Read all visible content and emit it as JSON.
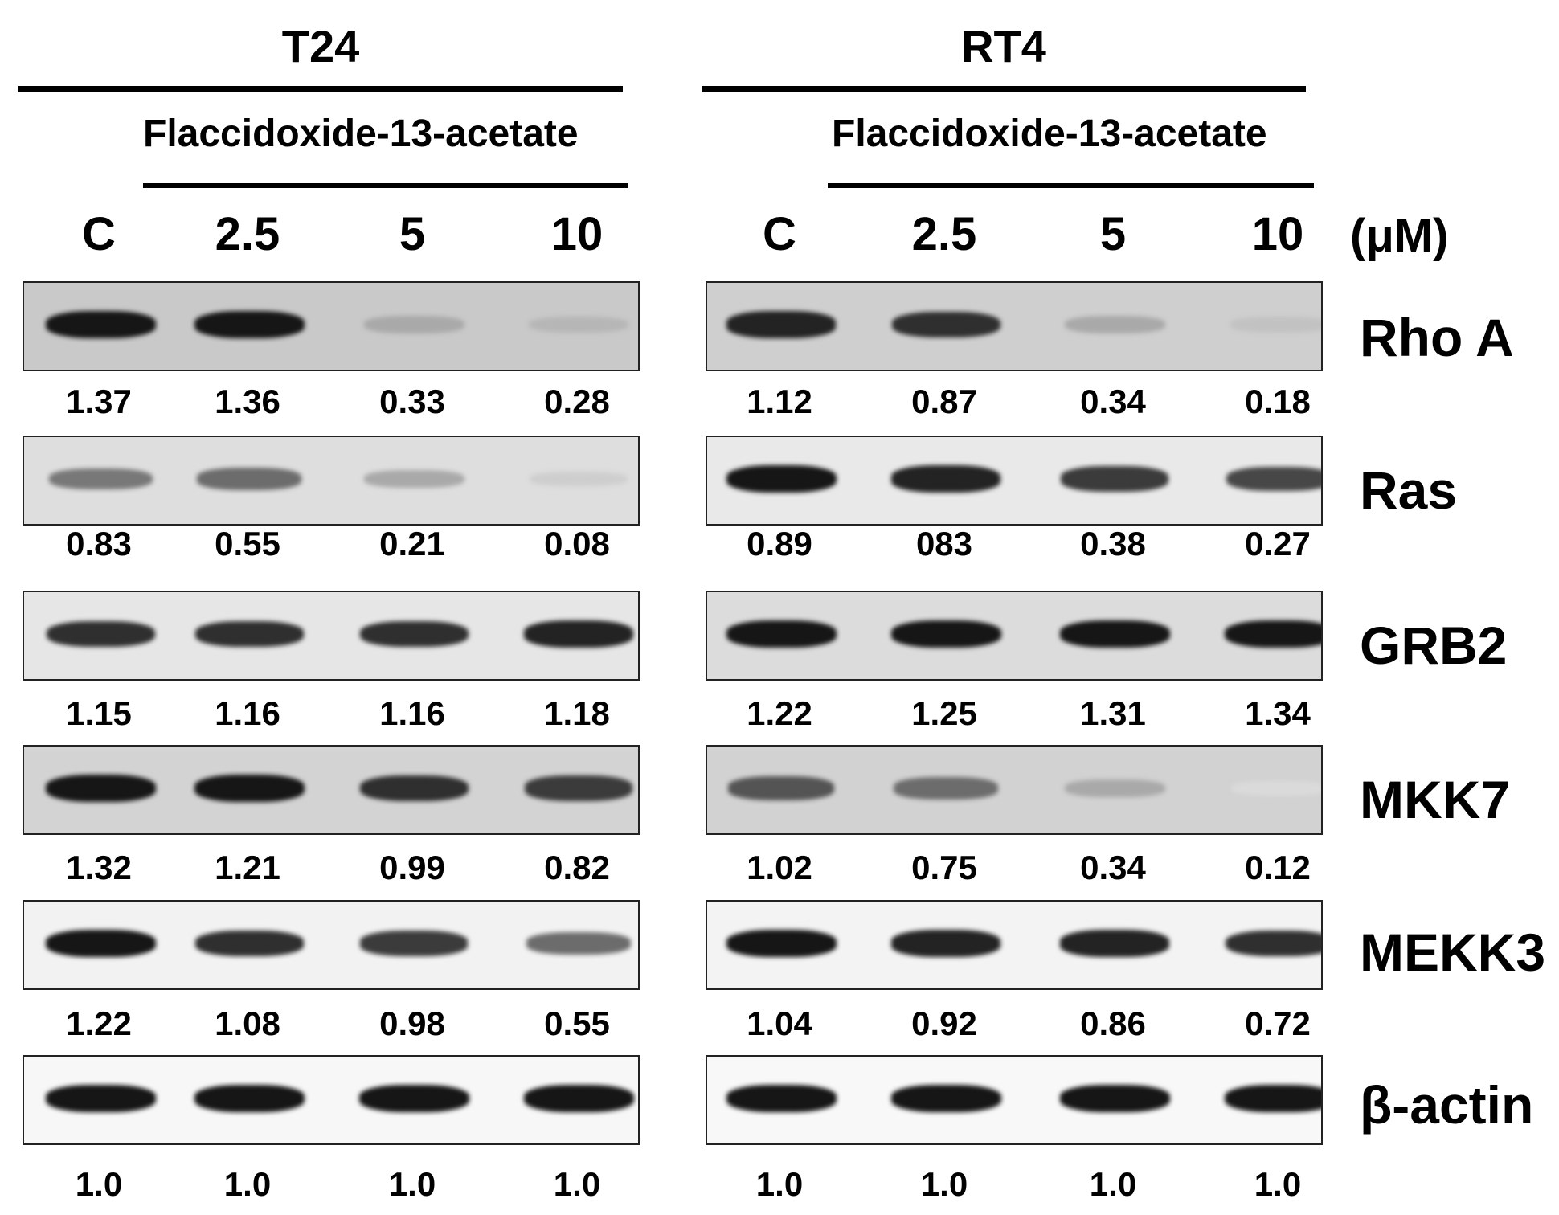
{
  "unit_label": "(μM)",
  "panels": [
    {
      "title": "T24",
      "treatment_label": "Flaccidoxide-13-acetate",
      "lanes": [
        "C",
        "2.5",
        "5",
        "10"
      ],
      "background_colors": [
        "#c9c9c9",
        "#dedede",
        "#e6e6e6",
        "#d3d3d3",
        "#f2f2f2",
        "#f7f7f7"
      ],
      "values": [
        [
          "1.37",
          "1.36",
          "0.33",
          "0.28"
        ],
        [
          "0.83",
          "0.55",
          "0.21",
          "0.08"
        ],
        [
          "1.15",
          "1.16",
          "1.16",
          "1.18"
        ],
        [
          "1.32",
          "1.21",
          "0.99",
          "0.82"
        ],
        [
          "1.22",
          "1.08",
          "0.98",
          "0.55"
        ],
        [
          "1.0",
          "1.0",
          "1.0",
          "1.0"
        ]
      ],
      "band_intensity": [
        [
          0.95,
          0.95,
          0.35,
          0.3
        ],
        [
          0.55,
          0.6,
          0.35,
          0.2
        ],
        [
          0.85,
          0.85,
          0.85,
          0.9
        ],
        [
          0.95,
          0.95,
          0.85,
          0.8
        ],
        [
          0.95,
          0.85,
          0.8,
          0.6
        ],
        [
          0.95,
          0.95,
          0.95,
          0.95
        ]
      ]
    },
    {
      "title": "RT4",
      "treatment_label": "Flaccidoxide-13-acetate",
      "lanes": [
        "C",
        "2.5",
        "5",
        "10"
      ],
      "background_colors": [
        "#cfcfcf",
        "#e9e9e9",
        "#dcdcdc",
        "#d2d2d2",
        "#f3f3f3",
        "#f8f8f8"
      ],
      "values": [
        [
          "1.12",
          "0.87",
          "0.34",
          "0.18"
        ],
        [
          "0.89",
          "083",
          "0.38",
          "0.27"
        ],
        [
          "1.22",
          "1.25",
          "1.31",
          "1.34"
        ],
        [
          "1.02",
          "0.75",
          "0.34",
          "0.12"
        ],
        [
          "1.04",
          "0.92",
          "0.86",
          "0.72"
        ],
        [
          "1.0",
          "1.0",
          "1.0",
          "1.0"
        ]
      ],
      "band_intensity": [
        [
          0.9,
          0.85,
          0.35,
          0.25
        ],
        [
          0.95,
          0.9,
          0.8,
          0.75
        ],
        [
          0.95,
          0.95,
          0.95,
          0.95
        ],
        [
          0.7,
          0.6,
          0.35,
          0.15
        ],
        [
          0.95,
          0.9,
          0.9,
          0.85
        ],
        [
          0.95,
          0.95,
          0.95,
          0.95
        ]
      ]
    }
  ],
  "proteins": [
    "Rho A",
    "Ras",
    "GRB2",
    "MKK7",
    "MEKK3",
    "β-actin"
  ]
}
